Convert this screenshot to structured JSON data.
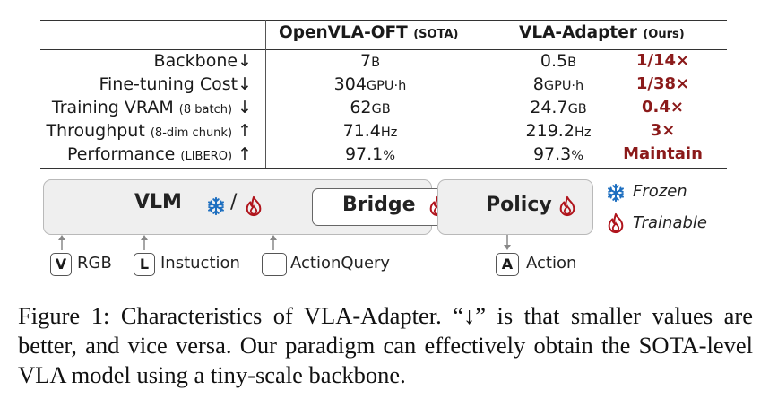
{
  "table": {
    "header": {
      "col1": "OpenVLA-OFT",
      "col1_note": "(SOTA)",
      "col2": "VLA-Adapter",
      "col2_note": "(Ours)"
    },
    "rows": [
      {
        "label": "Backbone",
        "note": "",
        "arrow": "↓",
        "v1": "7",
        "u1": "B",
        "v2": "0.5",
        "u2": "B",
        "ratio": "1/14×"
      },
      {
        "label": "Fine-tuning Cost",
        "note": "",
        "arrow": "↓",
        "v1": "304",
        "u1": "GPU·h",
        "v2": "8",
        "u2": "GPU·h",
        "ratio": "1/38×"
      },
      {
        "label": "Training VRAM",
        "note": "(8 batch)",
        "arrow": "↓",
        "v1": "62",
        "u1": "GB",
        "v2": "24.7",
        "u2": "GB",
        "ratio": "0.4×"
      },
      {
        "label": "Throughput",
        "note": "(8-dim chunk)",
        "arrow": "↑",
        "v1": "71.4",
        "u1": "Hz",
        "v2": "219.2",
        "u2": "Hz",
        "ratio": "3×"
      },
      {
        "label": "Performance",
        "note": "(LIBERO)",
        "arrow": "↑",
        "v1": "97.1",
        "u1": "%",
        "v2": "97.3",
        "u2": "%",
        "ratio": "Maintain"
      }
    ],
    "ratio_color": "#8b1a1a"
  },
  "diagram": {
    "vlm_label": "VLM",
    "slash": "/",
    "bridge_label": "Bridge",
    "policy_label": "Policy",
    "legend": {
      "frozen": "Frozen",
      "trainable": "Trainable"
    },
    "inputs": [
      {
        "tag": "V",
        "text": "RGB"
      },
      {
        "tag": "L",
        "text": "Instuction"
      },
      {
        "tag": "",
        "text": "ActionQuery"
      }
    ],
    "output": {
      "tag": "A",
      "text": "Action"
    },
    "frozen_color": "#1e6fc0",
    "trainable_color": "#b0141c",
    "box_fill": "#efefef"
  },
  "caption": "Figure 1: Characteristics of VLA-Adapter. “↓” is that smaller values are better, and vice versa. Our paradigm can effectively obtain the SOTA-level VLA model using a tiny-scale backbone."
}
